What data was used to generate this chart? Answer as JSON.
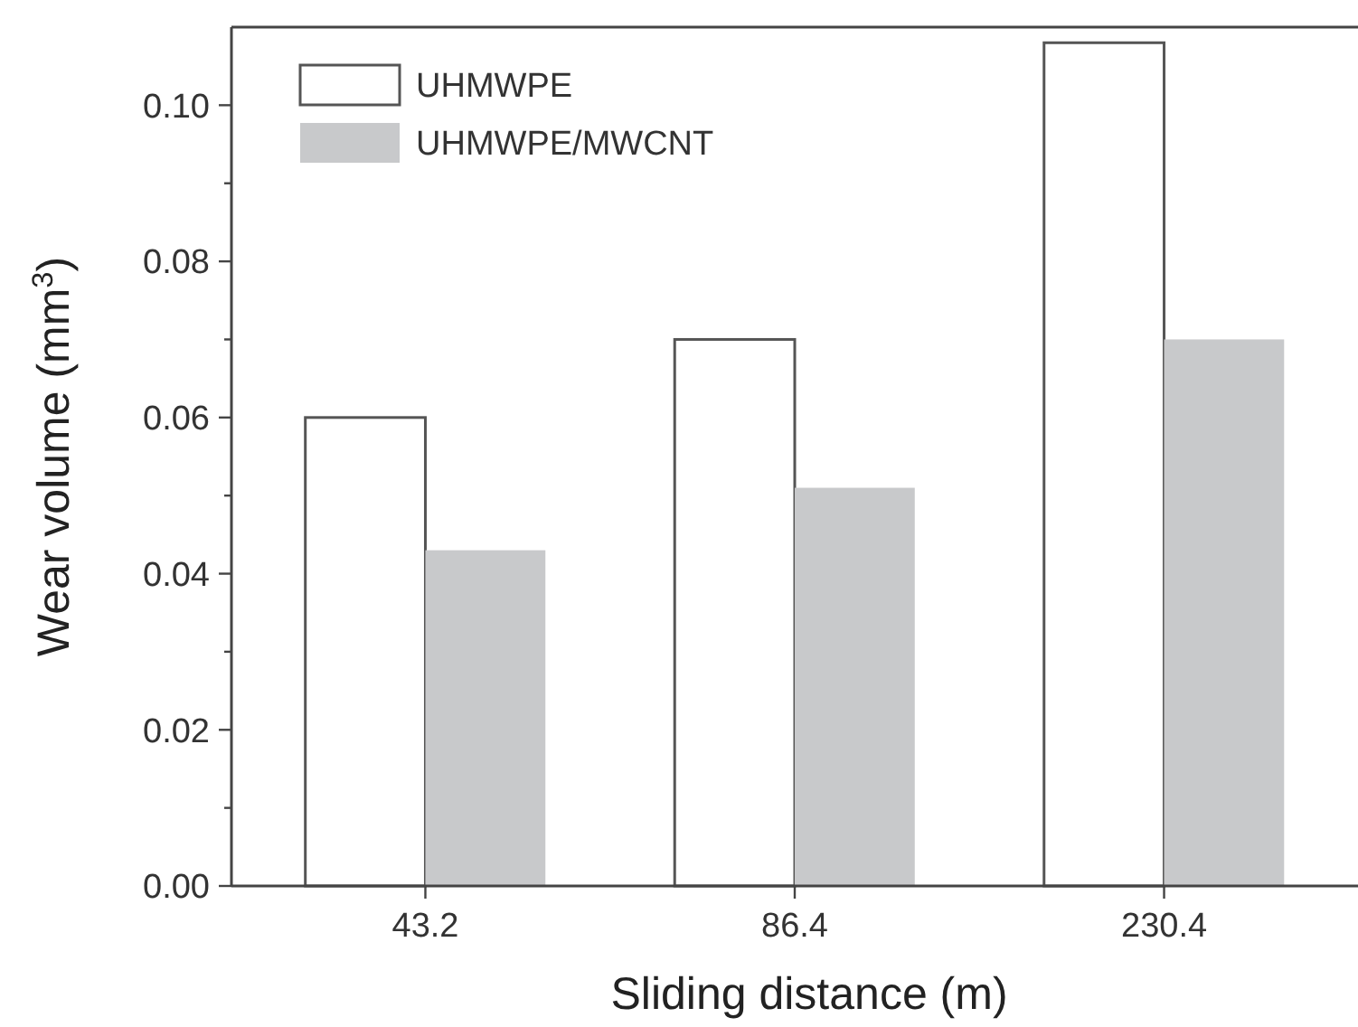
{
  "chart_data": {
    "type": "bar",
    "xlabel": "Sliding distance (m)",
    "ylabel": "Wear volume (mm$^{3}$)",
    "categories": [
      "43.2",
      "86.4",
      "230.4"
    ],
    "series": [
      {
        "name": "UHMWPE",
        "color": "#ffffff",
        "values": [
          0.06,
          0.07,
          0.108
        ]
      },
      {
        "name": "UHMWPE/MWCNT",
        "color": "#c8c9cb",
        "values": [
          0.043,
          0.051,
          0.07
        ]
      }
    ],
    "ylim": [
      0,
      0.11
    ],
    "yticks": [
      {
        "value": 0,
        "label": "0.00"
      },
      {
        "value": 0.01,
        "label": null
      },
      {
        "value": 0.02,
        "label": "0.02"
      },
      {
        "value": 0.03,
        "label": null
      },
      {
        "value": 0.04,
        "label": "0.04"
      },
      {
        "value": 0.05,
        "label": null
      },
      {
        "value": 0.06,
        "label": "0.06"
      },
      {
        "value": 0.07,
        "label": null
      },
      {
        "value": 0.08,
        "label": "0.08"
      },
      {
        "value": 0.09,
        "label": null
      },
      {
        "value": 0.1,
        "label": "0.10"
      }
    ],
    "grid": false,
    "legend": "top left"
  }
}
